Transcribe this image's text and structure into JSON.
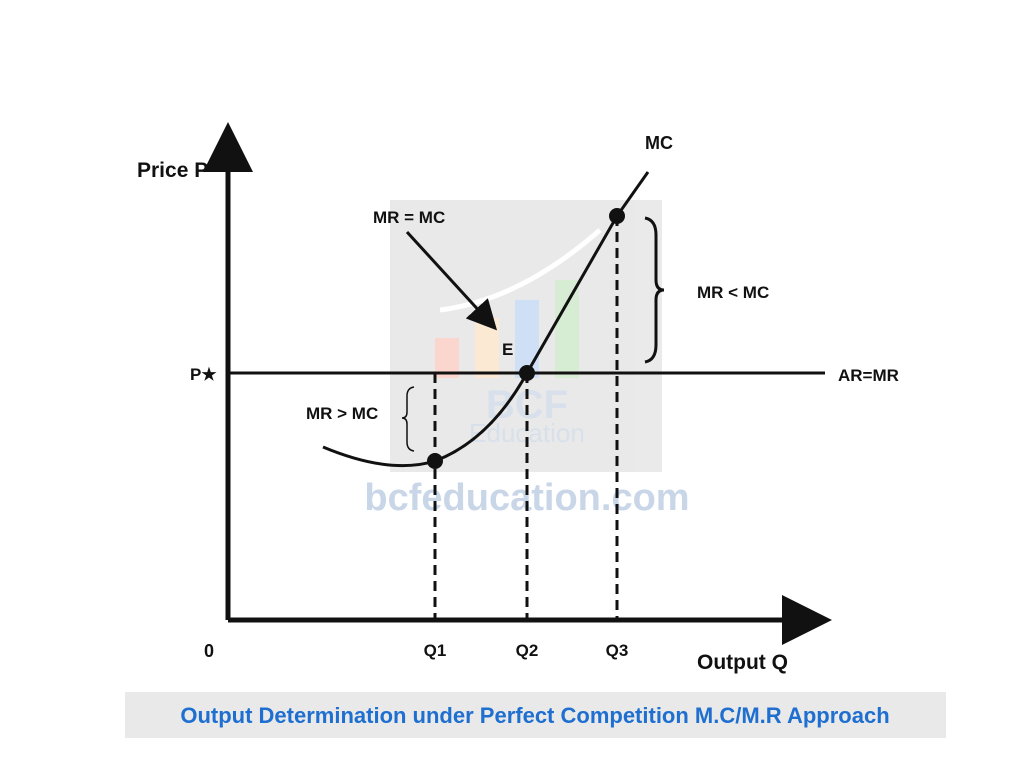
{
  "axes": {
    "y_label": "Price P",
    "x_label": "Output Q",
    "origin": "0"
  },
  "labels": {
    "price": "P★",
    "ar_mr": "AR=MR",
    "mc": "MC",
    "e": "E",
    "q1": "Q1",
    "q2": "Q2",
    "q3": "Q3"
  },
  "annotations": {
    "equal": "MR = MC",
    "less": "MR < MC",
    "greater": "MR > MC"
  },
  "watermark": {
    "logo": "BCF",
    "logo_sub": "Education",
    "url": "bcfeducation.com"
  },
  "caption": "Output Determination under Perfect Competition M.C/M.R Approach"
}
